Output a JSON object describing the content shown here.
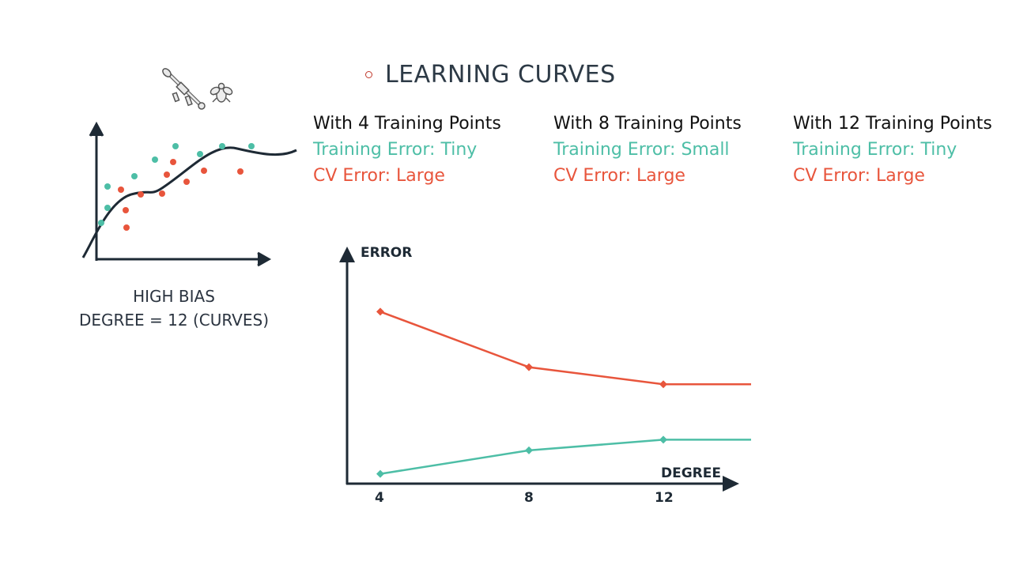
{
  "title": "LEARNING CURVES",
  "columns": [
    {
      "header": "With 4 Training Points",
      "train": "Training Error: Tiny",
      "cv": "CV Error: Large"
    },
    {
      "header": "With 8 Training Points",
      "train": "Training Error: Small",
      "cv": "CV Error: Large"
    },
    {
      "header": "With 12 Training Points",
      "train": "Training Error: Tiny",
      "cv": "CV Error: Large"
    }
  ],
  "caption": {
    "line1": "HIGH BIAS",
    "line2": "DEGREE = 12 (CURVES)"
  },
  "colors": {
    "train": "#4dbea6",
    "cv": "#e8553c",
    "axis": "#1e2a35"
  },
  "icons": [
    "bazooka-icon",
    "fly-icon"
  ],
  "chart_data": {
    "type": "line",
    "xlabel": "DEGREE",
    "ylabel": "ERROR",
    "x": [
      "4",
      "8",
      "12"
    ],
    "series": [
      {
        "color": "#e8553c",
        "values": [
          0.78,
          0.52,
          0.44
        ],
        "tail": 0.44
      },
      {
        "color": "#4dbea6",
        "values": [
          0.02,
          0.13,
          0.18
        ],
        "tail": 0.18
      }
    ]
  }
}
